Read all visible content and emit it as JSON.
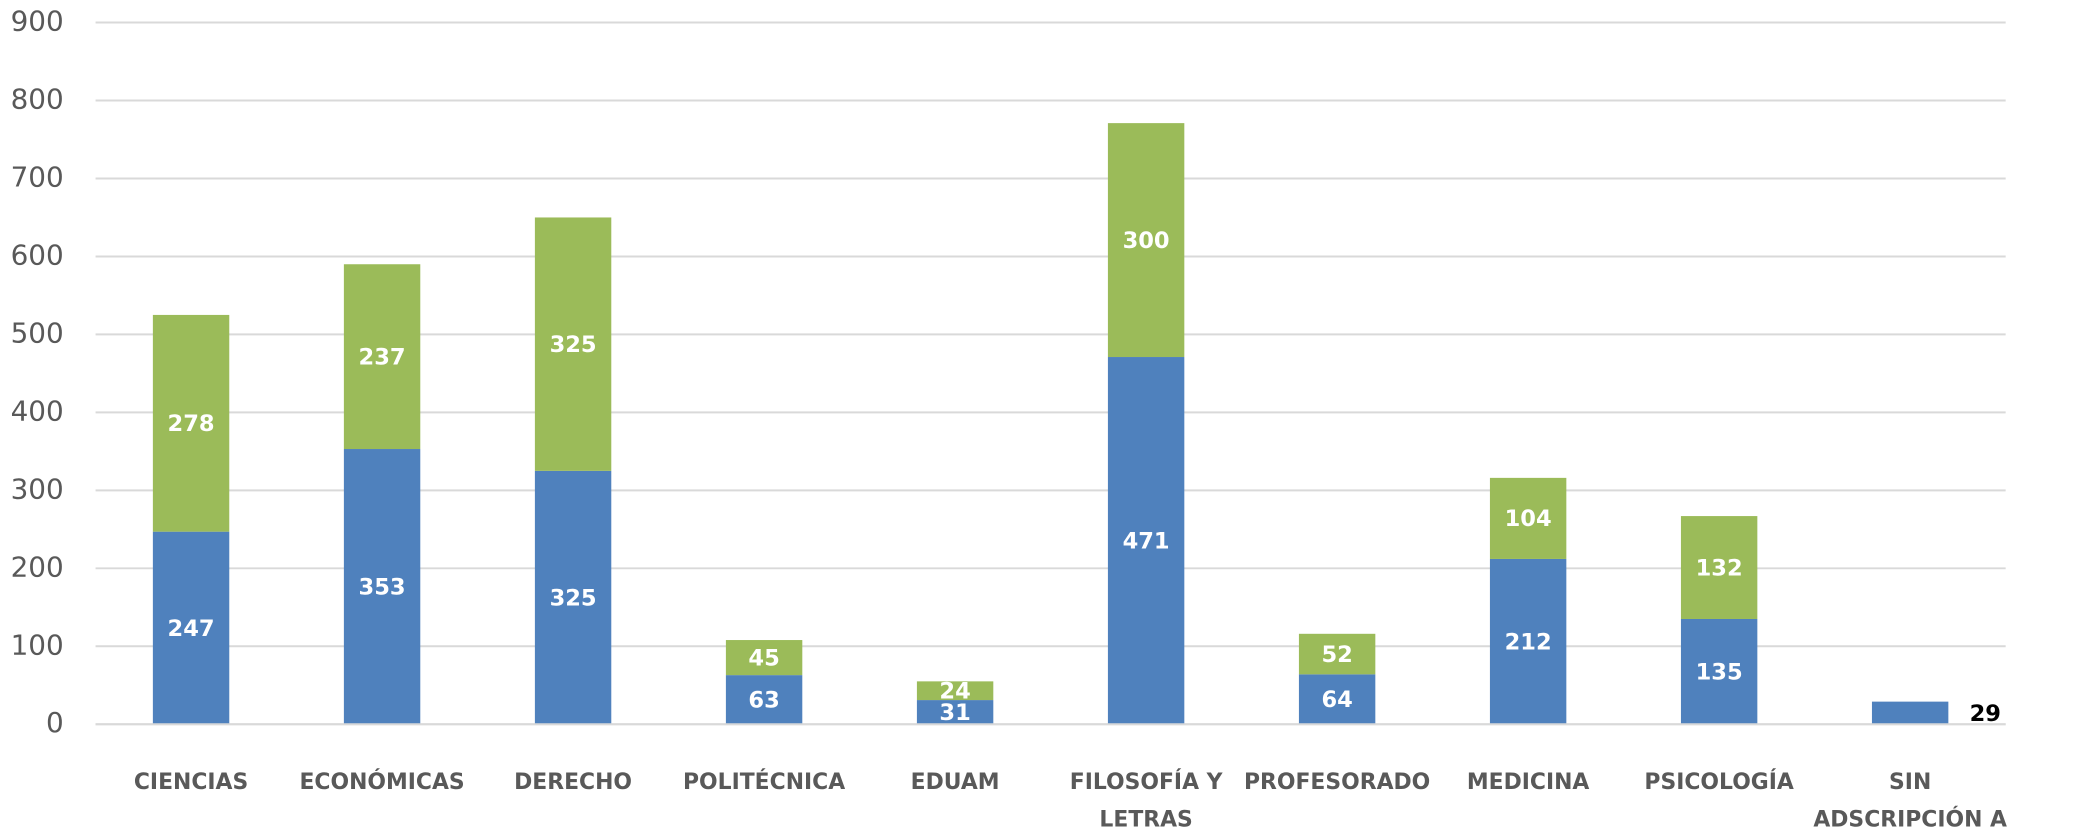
{
  "chart_data": {
    "type": "stacked_bar",
    "categories": [
      "CIENCIAS",
      "ECONÓMICAS",
      "DERECHO",
      "POLITÉCNICA",
      "EDUAM",
      "FILOSOFÍA Y LETRAS",
      "PROFESORADO",
      "MEDICINA",
      "PSICOLOGÍA",
      "SIN ADSCRIPCIÓN A UN CENTRO"
    ],
    "series": [
      {
        "color": "#4f81bd",
        "values": [
          247,
          353,
          325,
          63,
          31,
          471,
          64,
          212,
          135,
          29
        ]
      },
      {
        "color": "#9bbb59",
        "values": [
          278,
          237,
          325,
          45,
          24,
          300,
          52,
          104,
          132,
          null
        ]
      }
    ],
    "ylim": [
      0,
      900
    ],
    "yticks": [
      0,
      100,
      200,
      300,
      400,
      500,
      600,
      700,
      800,
      900
    ],
    "grid": true
  }
}
